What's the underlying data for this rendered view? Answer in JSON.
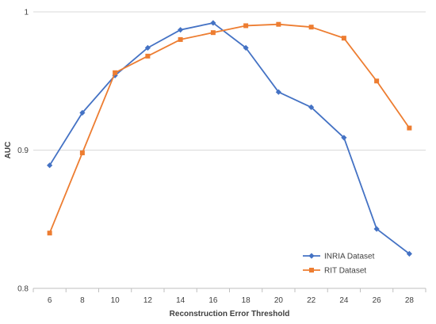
{
  "chart_data": {
    "type": "line",
    "title": "",
    "xlabel": "Reconstruction Error Threshold",
    "ylabel": "AUC",
    "x": [
      6,
      8,
      10,
      12,
      14,
      16,
      18,
      20,
      22,
      24,
      26,
      28
    ],
    "xlim": [
      5,
      29
    ],
    "ylim": [
      0.8,
      1.0
    ],
    "yticks": [
      0.8,
      0.9,
      1.0
    ],
    "ytick_labels": [
      "0.8",
      "0.9",
      "1"
    ],
    "xtick_labels": [
      "6",
      "8",
      "10",
      "12",
      "14",
      "16",
      "18",
      "20",
      "22",
      "24",
      "26",
      "28"
    ],
    "grid": "horizontal",
    "legend_position": "bottom-right",
    "series": [
      {
        "name": "INRIA Dataset",
        "color": "#4472C4",
        "marker": "diamond",
        "values": [
          0.889,
          0.927,
          0.954,
          0.974,
          0.987,
          0.992,
          0.974,
          0.942,
          0.931,
          0.909,
          0.843,
          0.825
        ]
      },
      {
        "name": "RIT Dataset",
        "color": "#ED7D31",
        "marker": "square",
        "values": [
          0.84,
          0.898,
          0.956,
          0.968,
          0.98,
          0.985,
          0.99,
          0.991,
          0.989,
          0.981,
          0.95,
          0.916
        ]
      }
    ]
  }
}
